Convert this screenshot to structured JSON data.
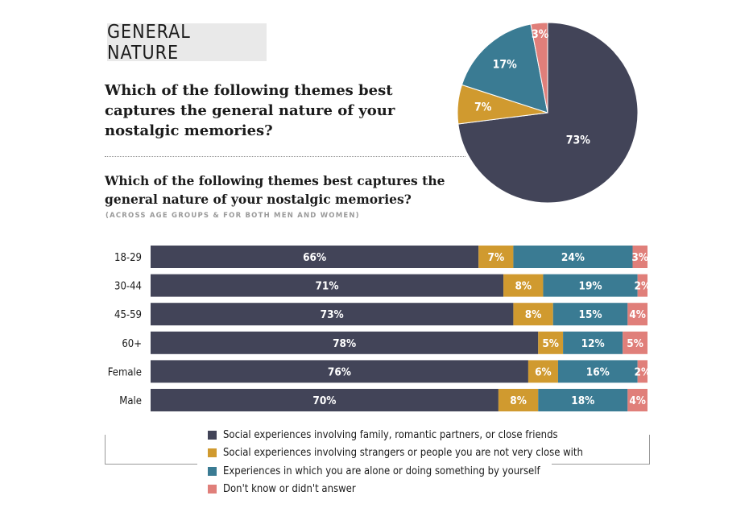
{
  "header": {
    "section_tag": "GENERAL NATURE"
  },
  "question_pie": "Which of the following themes best captures the general nature of your nostalgic memories?",
  "question_bars": "Which of the following themes best captures the general nature of your nostalgic memories?",
  "question_bars_sub": "(ACROSS AGE GROUPS & FOR BOTH MEN AND WOMEN)",
  "colors": {
    "social_close": "#424458",
    "social_strangers": "#d09a2f",
    "alone": "#3a7b93",
    "dont_know": "#e07f7a"
  },
  "legend": [
    {
      "label": "Social experiences involving family, romantic partners, or close friends",
      "color": "#424458"
    },
    {
      "label": "Social experiences involving strangers or people you are not very close with",
      "color": "#d09a2f"
    },
    {
      "label": "Experiences in which you are alone or doing something by yourself",
      "color": "#3a7b93"
    },
    {
      "label": "Don't know or didn't answer",
      "color": "#e07f7a"
    }
  ],
  "chart_data": [
    {
      "type": "pie",
      "slices": [
        {
          "value": 73,
          "label": "73%",
          "color": "#424458"
        },
        {
          "value": 7,
          "label": "7%",
          "color": "#d09a2f"
        },
        {
          "value": 17,
          "label": "17%",
          "color": "#3a7b93"
        },
        {
          "value": 3,
          "label": "3%",
          "color": "#e07f7a"
        }
      ]
    },
    {
      "type": "bar",
      "orientation": "horizontal",
      "stacked": true,
      "categories": [
        "18-29",
        "30-44",
        "45-59",
        "60+",
        "Female",
        "Male"
      ],
      "series": [
        {
          "name": "Social experiences involving family, romantic partners, or close friends",
          "color": "#424458",
          "values": [
            66,
            71,
            73,
            78,
            76,
            70
          ]
        },
        {
          "name": "Social experiences involving strangers or people you are not very close with",
          "color": "#d09a2f",
          "values": [
            7,
            8,
            8,
            5,
            6,
            8
          ]
        },
        {
          "name": "Experiences in which you are alone or doing something by yourself",
          "color": "#3a7b93",
          "values": [
            24,
            19,
            15,
            12,
            16,
            18
          ]
        },
        {
          "name": "Don't know or didn't answer",
          "color": "#e07f7a",
          "values": [
            3,
            2,
            4,
            5,
            2,
            4
          ]
        }
      ],
      "value_format": "{v}%",
      "xlim": [
        0,
        100
      ]
    }
  ]
}
